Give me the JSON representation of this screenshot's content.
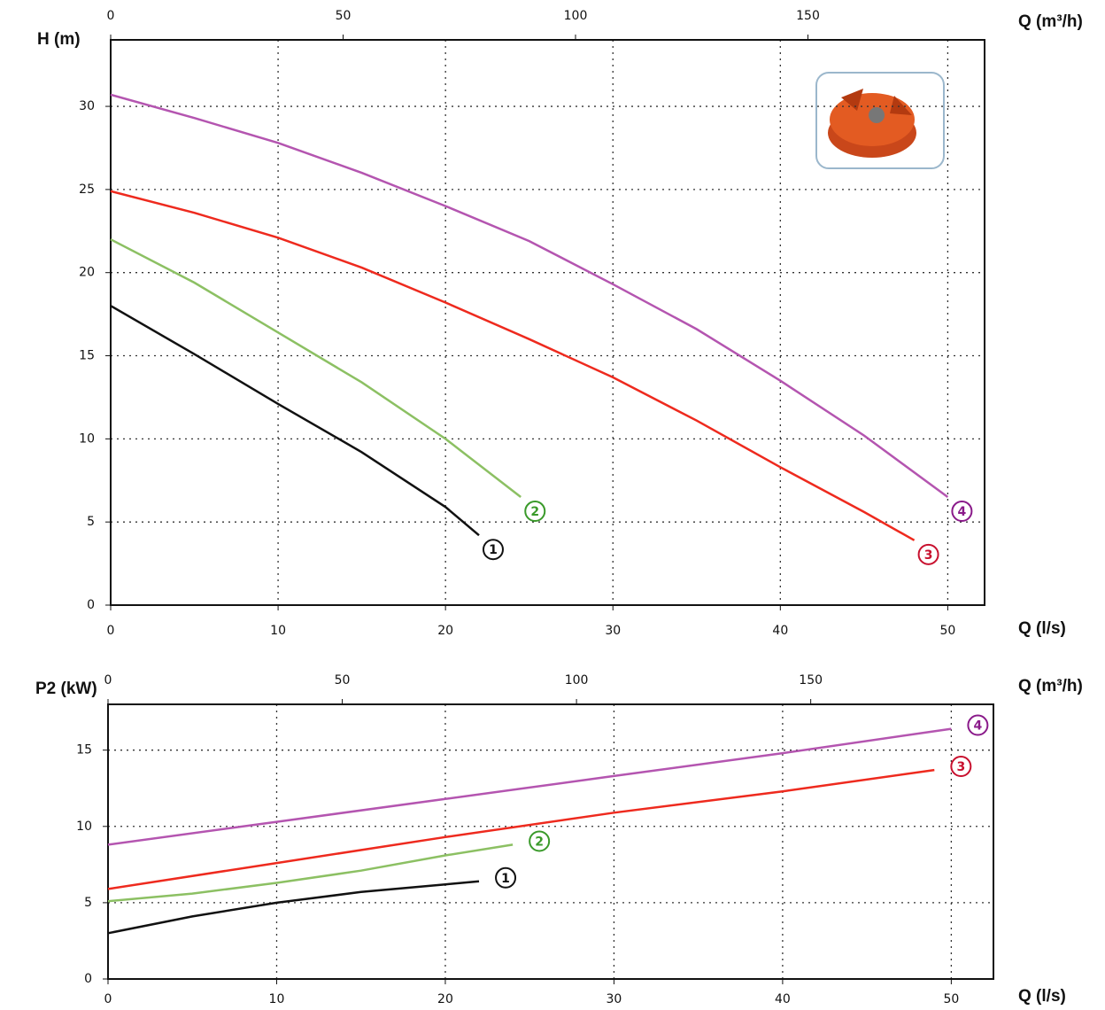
{
  "charts": [
    {
      "type": "line",
      "ylabel": "H (m)",
      "xlabel": "Q (l/s)",
      "x2label": "Q (m³/h)",
      "xlim": [
        0,
        52.2
      ],
      "xticks": [
        0,
        10,
        20,
        30,
        40,
        50
      ],
      "x2lim": [
        0,
        188
      ],
      "x2ticks": [
        0,
        50,
        100,
        150
      ],
      "ylim": [
        0,
        34
      ],
      "yticks": [
        0,
        5,
        10,
        15,
        20,
        25,
        30
      ],
      "grid": true,
      "series": [
        {
          "name": "1",
          "color": "#111111",
          "label_color": "#111111",
          "x": [
            0,
            5,
            10,
            15,
            20,
            22
          ],
          "values": [
            18,
            15.1,
            12.1,
            9.2,
            5.9,
            4.2
          ]
        },
        {
          "name": "2",
          "color": "#8cc063",
          "label_color": "#3a9a2a",
          "x": [
            0,
            5,
            10,
            15,
            20,
            24.5
          ],
          "values": [
            22,
            19.4,
            16.4,
            13.4,
            10,
            6.5
          ]
        },
        {
          "name": "3",
          "color": "#ee2a1e",
          "label_color": "#c8102e",
          "x": [
            0,
            5,
            10,
            15,
            20,
            25,
            30,
            35,
            40,
            45,
            48
          ],
          "values": [
            24.9,
            23.6,
            22.1,
            20.3,
            18.2,
            16,
            13.7,
            11.1,
            8.3,
            5.6,
            3.9
          ]
        },
        {
          "name": "4",
          "color": "#b455b0",
          "label_color": "#8a1a8a",
          "x": [
            0,
            5,
            10,
            15,
            20,
            25,
            30,
            35,
            40,
            45,
            50
          ],
          "values": [
            30.7,
            29.3,
            27.8,
            26,
            24,
            21.9,
            19.3,
            16.6,
            13.5,
            10.2,
            6.5
          ]
        }
      ]
    },
    {
      "type": "line",
      "ylabel": "P2 (kW)",
      "xlabel": "Q (l/s)",
      "x2label": "Q (m³/h)",
      "xlim": [
        0,
        52.5
      ],
      "xticks": [
        0,
        10,
        20,
        30,
        40,
        50
      ],
      "x2lim": [
        0,
        189
      ],
      "x2ticks": [
        0,
        50,
        100,
        150
      ],
      "ylim": [
        0,
        18
      ],
      "yticks": [
        0,
        5,
        10,
        15
      ],
      "grid": true,
      "series": [
        {
          "name": "1",
          "color": "#111111",
          "label_color": "#111111",
          "x": [
            0,
            5,
            10,
            15,
            20,
            22
          ],
          "values": [
            3,
            4.1,
            5,
            5.7,
            6.2,
            6.4
          ]
        },
        {
          "name": "2",
          "color": "#8cc063",
          "label_color": "#3a9a2a",
          "x": [
            0,
            5,
            10,
            15,
            20,
            24
          ],
          "values": [
            5.1,
            5.6,
            6.3,
            7.1,
            8.1,
            8.8
          ]
        },
        {
          "name": "3",
          "color": "#ee2a1e",
          "label_color": "#c8102e",
          "x": [
            0,
            10,
            20,
            30,
            40,
            49
          ],
          "values": [
            5.9,
            7.6,
            9.3,
            10.9,
            12.3,
            13.7
          ]
        },
        {
          "name": "4",
          "color": "#b455b0",
          "label_color": "#8a1a8a",
          "x": [
            0,
            10,
            20,
            30,
            40,
            50
          ],
          "values": [
            8.8,
            10.3,
            11.8,
            13.3,
            14.8,
            16.4
          ]
        }
      ]
    }
  ]
}
